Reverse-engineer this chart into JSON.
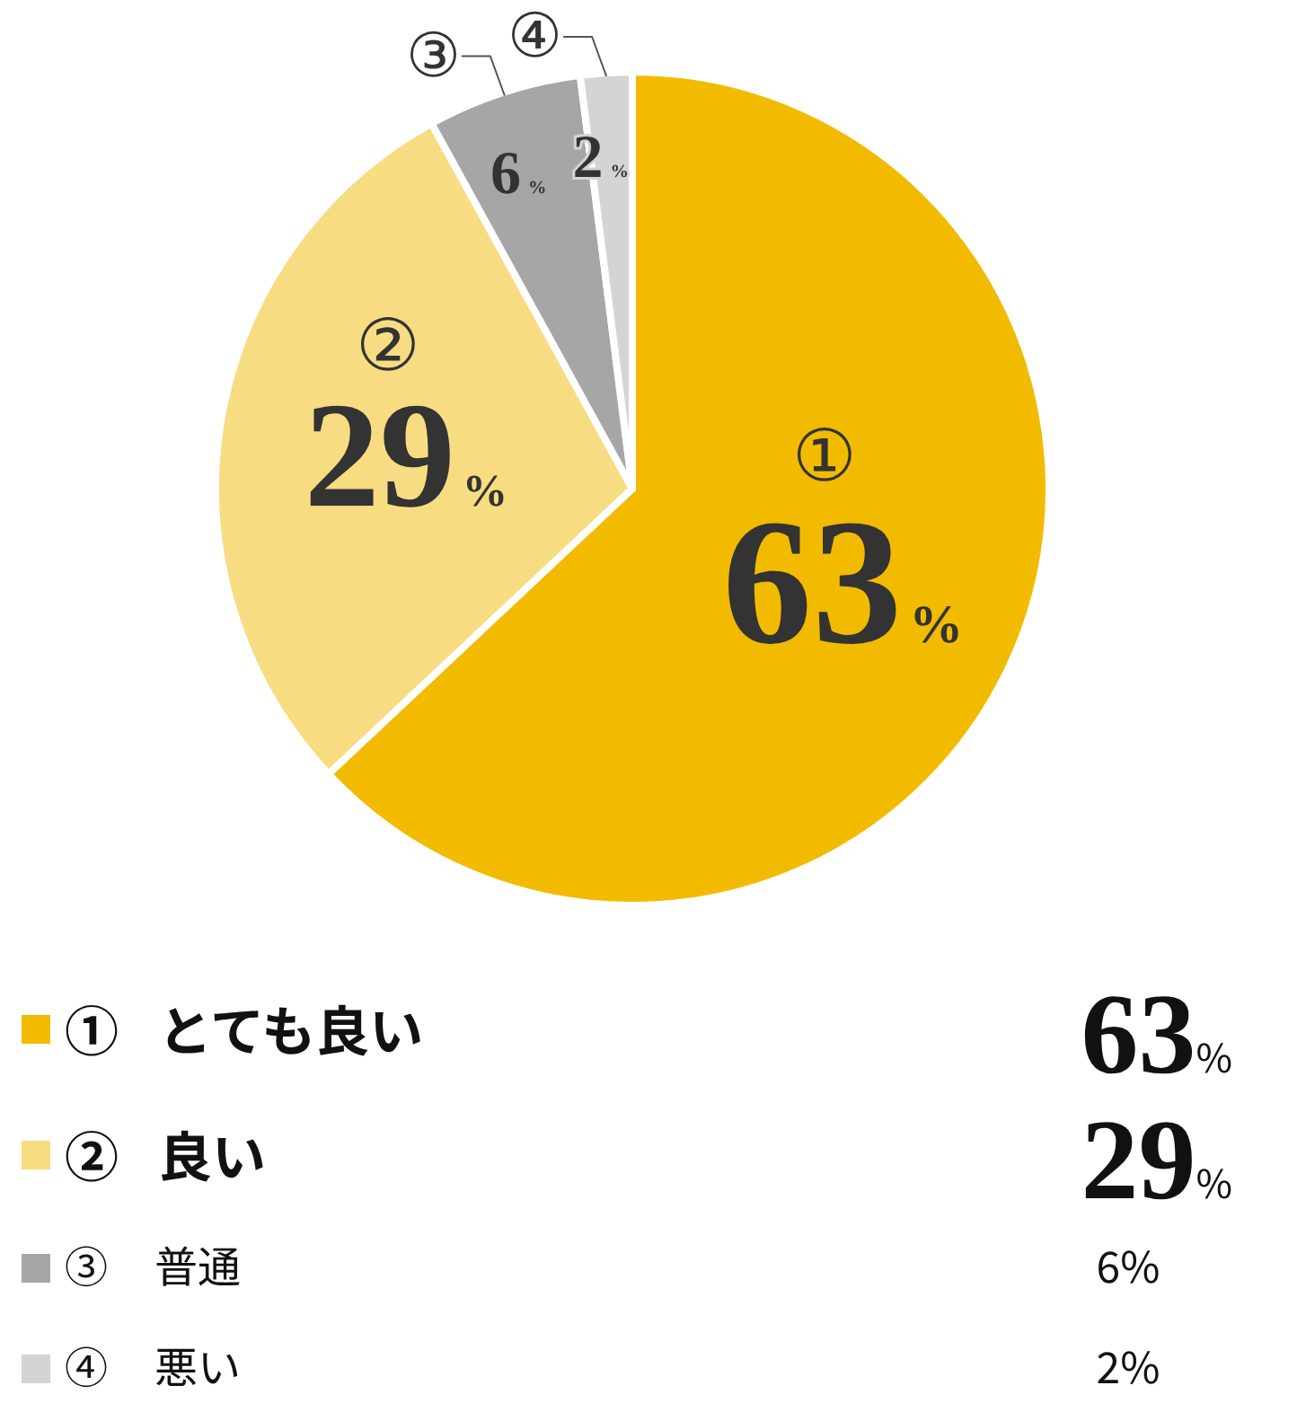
{
  "chart_data": {
    "type": "pie",
    "categories": [
      "① とても良い",
      "② 良い",
      "③ 普通",
      "④ 悪い"
    ],
    "values": [
      63,
      29,
      6,
      2
    ],
    "colors": [
      "#f2bb00",
      "#f7dc82",
      "#a6a6a6",
      "#d4d4d4"
    ],
    "value_labels": [
      "63%",
      "29%",
      "6%",
      "2%"
    ],
    "annotations": [
      "①",
      "②",
      "③",
      "④"
    ],
    "legend": "bottom"
  }
}
